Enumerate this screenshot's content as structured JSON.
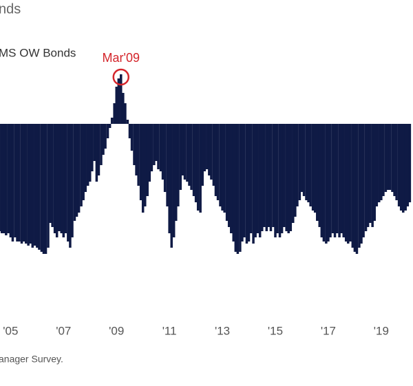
{
  "chart_data": {
    "type": "bar",
    "title": "nds",
    "subtitle": "MS OW Bonds",
    "annotation": "Mar'09",
    "source": "anager Survey.",
    "color": "#0f1a45",
    "annotation_color": "#d4252b",
    "xlim": [
      2004.6,
      2020.2
    ],
    "ylim": [
      -80,
      60
    ],
    "xticks": [
      {
        "value": 2005,
        "label": "'05"
      },
      {
        "value": 2007,
        "label": "'07"
      },
      {
        "value": 2009,
        "label": "'09"
      },
      {
        "value": 2011,
        "label": "'11"
      },
      {
        "value": 2013,
        "label": "'13"
      },
      {
        "value": 2015,
        "label": "'15"
      },
      {
        "value": 2017,
        "label": "'17"
      },
      {
        "value": 2019,
        "label": "'19"
      }
    ],
    "x": [
      2004.58,
      2004.67,
      2004.75,
      2004.83,
      2004.92,
      2005.0,
      2005.08,
      2005.17,
      2005.25,
      2005.33,
      2005.42,
      2005.5,
      2005.58,
      2005.67,
      2005.75,
      2005.83,
      2005.92,
      2006.0,
      2006.08,
      2006.17,
      2006.25,
      2006.33,
      2006.42,
      2006.5,
      2006.58,
      2006.67,
      2006.75,
      2006.83,
      2006.92,
      2007.0,
      2007.08,
      2007.17,
      2007.25,
      2007.33,
      2007.42,
      2007.5,
      2007.58,
      2007.67,
      2007.75,
      2007.83,
      2007.92,
      2008.0,
      2008.08,
      2008.17,
      2008.25,
      2008.33,
      2008.42,
      2008.5,
      2008.58,
      2008.67,
      2008.75,
      2008.83,
      2008.92,
      2009.0,
      2009.08,
      2009.17,
      2009.25,
      2009.33,
      2009.42,
      2009.5,
      2009.58,
      2009.67,
      2009.75,
      2009.83,
      2009.92,
      2010.0,
      2010.08,
      2010.17,
      2010.25,
      2010.33,
      2010.42,
      2010.5,
      2010.58,
      2010.67,
      2010.75,
      2010.83,
      2010.92,
      2011.0,
      2011.08,
      2011.17,
      2011.25,
      2011.33,
      2011.42,
      2011.5,
      2011.58,
      2011.67,
      2011.75,
      2011.83,
      2011.92,
      2012.0,
      2012.08,
      2012.17,
      2012.25,
      2012.33,
      2012.42,
      2012.5,
      2012.58,
      2012.67,
      2012.75,
      2012.83,
      2012.92,
      2013.0,
      2013.08,
      2013.17,
      2013.25,
      2013.33,
      2013.42,
      2013.5,
      2013.58,
      2013.67,
      2013.75,
      2013.83,
      2013.92,
      2014.0,
      2014.08,
      2014.17,
      2014.25,
      2014.33,
      2014.42,
      2014.5,
      2014.58,
      2014.67,
      2014.75,
      2014.83,
      2014.92,
      2015.0,
      2015.08,
      2015.17,
      2015.25,
      2015.33,
      2015.42,
      2015.5,
      2015.58,
      2015.67,
      2015.75,
      2015.83,
      2015.92,
      2016.0,
      2016.08,
      2016.17,
      2016.25,
      2016.33,
      2016.42,
      2016.5,
      2016.58,
      2016.67,
      2016.75,
      2016.83,
      2016.92,
      2017.0,
      2017.08,
      2017.17,
      2017.25,
      2017.33,
      2017.42,
      2017.5,
      2017.58,
      2017.67,
      2017.75,
      2017.83,
      2017.92,
      2018.0,
      2018.08,
      2018.17,
      2018.25,
      2018.33,
      2018.42,
      2018.5,
      2018.58,
      2018.67,
      2018.75,
      2018.83,
      2018.92,
      2019.0,
      2019.08,
      2019.17,
      2019.25,
      2019.33,
      2019.42,
      2019.5,
      2019.58,
      2019.67,
      2019.75,
      2019.83,
      2019.92,
      2020.0,
      2020.08
    ],
    "values": [
      -52,
      -53,
      -53,
      -54,
      -53,
      -55,
      -57,
      -55,
      -57,
      -57,
      -58,
      -57,
      -58,
      -59,
      -58,
      -60,
      -59,
      -60,
      -61,
      -62,
      -63,
      -63,
      -60,
      -48,
      -50,
      -53,
      -55,
      -52,
      -53,
      -55,
      -53,
      -57,
      -60,
      -55,
      -47,
      -45,
      -43,
      -40,
      -37,
      -33,
      -30,
      -28,
      -23,
      -18,
      -28,
      -25,
      -20,
      -15,
      -12,
      -7,
      -2,
      3,
      10,
      18,
      22,
      24,
      15,
      10,
      2,
      -7,
      -13,
      -20,
      -25,
      -30,
      -37,
      -43,
      -40,
      -35,
      -28,
      -23,
      -20,
      -18,
      -22,
      -23,
      -27,
      -33,
      -40,
      -53,
      -60,
      -55,
      -47,
      -40,
      -32,
      -25,
      -27,
      -28,
      -30,
      -32,
      -35,
      -38,
      -42,
      -43,
      -30,
      -23,
      -22,
      -25,
      -27,
      -30,
      -35,
      -37,
      -40,
      -42,
      -43,
      -47,
      -50,
      -53,
      -57,
      -62,
      -63,
      -62,
      -57,
      -55,
      -58,
      -57,
      -53,
      -58,
      -55,
      -53,
      -55,
      -52,
      -50,
      -52,
      -50,
      -52,
      -50,
      -55,
      -53,
      -55,
      -53,
      -50,
      -52,
      -53,
      -52,
      -48,
      -45,
      -40,
      -37,
      -33,
      -35,
      -37,
      -38,
      -40,
      -42,
      -43,
      -47,
      -50,
      -55,
      -57,
      -58,
      -57,
      -55,
      -53,
      -55,
      -53,
      -55,
      -53,
      -55,
      -57,
      -58,
      -57,
      -60,
      -62,
      -63,
      -60,
      -58,
      -55,
      -52,
      -50,
      -48,
      -50,
      -47,
      -40,
      -38,
      -37,
      -35,
      -33,
      -32,
      -32,
      -33,
      -35,
      -37,
      -40,
      -42,
      -43,
      -42,
      -40,
      -38
    ]
  }
}
